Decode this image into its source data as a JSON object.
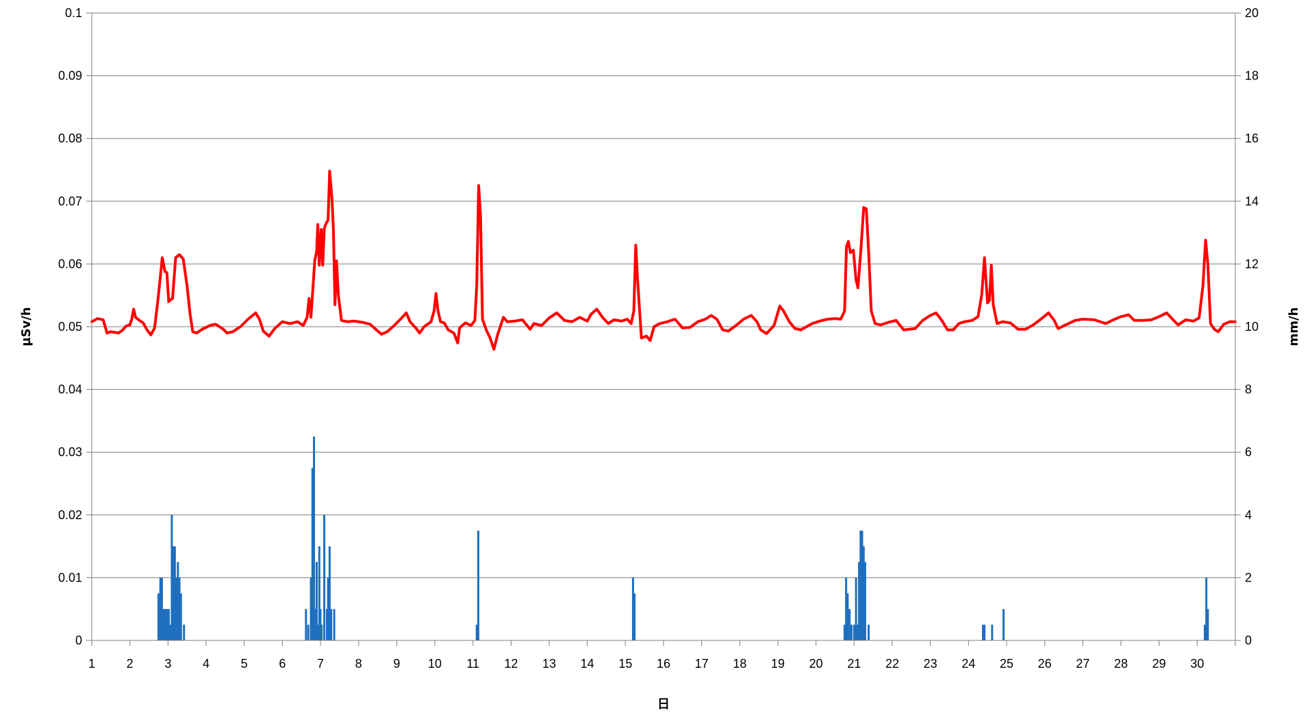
{
  "chart_data": {
    "type": "line",
    "xlabel": "日",
    "ylabel_left": "µSv/h",
    "ylabel_right": "mm/h",
    "xlim": [
      1,
      31
    ],
    "ylim_left": [
      0,
      0.1
    ],
    "ylim_right": [
      0,
      20
    ],
    "x_ticks": [
      "1",
      "2",
      "3",
      "4",
      "5",
      "6",
      "7",
      "8",
      "9",
      "10",
      "11",
      "12",
      "13",
      "14",
      "15",
      "16",
      "17",
      "18",
      "19",
      "20",
      "21",
      "22",
      "23",
      "24",
      "25",
      "26",
      "27",
      "28",
      "29",
      "30"
    ],
    "y_ticks_left": [
      "0",
      "0.01",
      "0.02",
      "0.03",
      "0.04",
      "0.05",
      "0.06",
      "0.07",
      "0.08",
      "0.09",
      "0.1"
    ],
    "y_ticks_right": [
      "0",
      "2",
      "4",
      "6",
      "8",
      "10",
      "12",
      "14",
      "16",
      "18",
      "20"
    ],
    "grid": "horizontal",
    "legend": "none",
    "colors": {
      "dose_line": "#ff0000",
      "rain_bars": "#1f6fbf",
      "grid": "#7f7f7f",
      "axis": "#7f7f7f"
    },
    "series": [
      {
        "axis": "left",
        "kind": "line",
        "points": [
          [
            1.0,
            0.0508
          ],
          [
            1.15,
            0.0513
          ],
          [
            1.3,
            0.0511
          ],
          [
            1.4,
            0.049
          ],
          [
            1.5,
            0.0492
          ],
          [
            1.7,
            0.049
          ],
          [
            1.8,
            0.0494
          ],
          [
            1.9,
            0.0501
          ],
          [
            2.0,
            0.0503
          ],
          [
            2.05,
            0.0512
          ],
          [
            2.1,
            0.0528
          ],
          [
            2.15,
            0.0515
          ],
          [
            2.25,
            0.051
          ],
          [
            2.35,
            0.0506
          ],
          [
            2.45,
            0.0495
          ],
          [
            2.55,
            0.0487
          ],
          [
            2.65,
            0.0498
          ],
          [
            2.75,
            0.055
          ],
          [
            2.85,
            0.061
          ],
          [
            2.92,
            0.0588
          ],
          [
            2.97,
            0.0586
          ],
          [
            3.02,
            0.054
          ],
          [
            3.07,
            0.0543
          ],
          [
            3.12,
            0.0545
          ],
          [
            3.2,
            0.061
          ],
          [
            3.3,
            0.0615
          ],
          [
            3.4,
            0.0608
          ],
          [
            3.5,
            0.0565
          ],
          [
            3.58,
            0.052
          ],
          [
            3.65,
            0.0492
          ],
          [
            3.75,
            0.049
          ],
          [
            3.9,
            0.0496
          ],
          [
            4.1,
            0.0502
          ],
          [
            4.25,
            0.0504
          ],
          [
            4.45,
            0.0496
          ],
          [
            4.55,
            0.049
          ],
          [
            4.7,
            0.0492
          ],
          [
            4.9,
            0.05
          ],
          [
            5.1,
            0.0512
          ],
          [
            5.3,
            0.0522
          ],
          [
            5.4,
            0.0512
          ],
          [
            5.5,
            0.0493
          ],
          [
            5.65,
            0.0485
          ],
          [
            5.8,
            0.0497
          ],
          [
            6.0,
            0.0508
          ],
          [
            6.2,
            0.0505
          ],
          [
            6.4,
            0.0508
          ],
          [
            6.55,
            0.0502
          ],
          [
            6.65,
            0.0515
          ],
          [
            6.7,
            0.0545
          ],
          [
            6.75,
            0.0515
          ],
          [
            6.8,
            0.056
          ],
          [
            6.85,
            0.0605
          ],
          [
            6.9,
            0.062
          ],
          [
            6.93,
            0.0663
          ],
          [
            6.97,
            0.0598
          ],
          [
            7.02,
            0.0655
          ],
          [
            7.06,
            0.0598
          ],
          [
            7.1,
            0.0657
          ],
          [
            7.15,
            0.0665
          ],
          [
            7.2,
            0.067
          ],
          [
            7.24,
            0.0748
          ],
          [
            7.3,
            0.0705
          ],
          [
            7.34,
            0.0655
          ],
          [
            7.38,
            0.0535
          ],
          [
            7.42,
            0.0605
          ],
          [
            7.47,
            0.055
          ],
          [
            7.55,
            0.051
          ],
          [
            7.7,
            0.0508
          ],
          [
            7.9,
            0.0509
          ],
          [
            8.1,
            0.0507
          ],
          [
            8.3,
            0.0504
          ],
          [
            8.45,
            0.0496
          ],
          [
            8.6,
            0.0488
          ],
          [
            8.75,
            0.0492
          ],
          [
            8.9,
            0.05
          ],
          [
            9.1,
            0.0512
          ],
          [
            9.25,
            0.0522
          ],
          [
            9.35,
            0.0508
          ],
          [
            9.5,
            0.0498
          ],
          [
            9.6,
            0.049
          ],
          [
            9.72,
            0.05
          ],
          [
            9.9,
            0.0508
          ],
          [
            9.98,
            0.0525
          ],
          [
            10.03,
            0.0553
          ],
          [
            10.08,
            0.0526
          ],
          [
            10.15,
            0.0508
          ],
          [
            10.25,
            0.0506
          ],
          [
            10.35,
            0.0495
          ],
          [
            10.5,
            0.049
          ],
          [
            10.6,
            0.0474
          ],
          [
            10.65,
            0.0498
          ],
          [
            10.8,
            0.0506
          ],
          [
            10.95,
            0.0502
          ],
          [
            11.05,
            0.051
          ],
          [
            11.1,
            0.0565
          ],
          [
            11.15,
            0.0725
          ],
          [
            11.2,
            0.0675
          ],
          [
            11.25,
            0.0512
          ],
          [
            11.35,
            0.0495
          ],
          [
            11.45,
            0.0482
          ],
          [
            11.55,
            0.0464
          ],
          [
            11.65,
            0.0488
          ],
          [
            11.8,
            0.0515
          ],
          [
            11.9,
            0.0508
          ],
          [
            12.1,
            0.0509
          ],
          [
            12.3,
            0.0511
          ],
          [
            12.5,
            0.0496
          ],
          [
            12.6,
            0.0505
          ],
          [
            12.8,
            0.0502
          ],
          [
            13.0,
            0.0514
          ],
          [
            13.2,
            0.0522
          ],
          [
            13.4,
            0.051
          ],
          [
            13.6,
            0.0508
          ],
          [
            13.8,
            0.0515
          ],
          [
            14.0,
            0.0509
          ],
          [
            14.1,
            0.052
          ],
          [
            14.25,
            0.0528
          ],
          [
            14.4,
            0.0515
          ],
          [
            14.55,
            0.0505
          ],
          [
            14.7,
            0.0511
          ],
          [
            14.9,
            0.0509
          ],
          [
            15.05,
            0.0512
          ],
          [
            15.15,
            0.0505
          ],
          [
            15.22,
            0.0525
          ],
          [
            15.27,
            0.063
          ],
          [
            15.32,
            0.0575
          ],
          [
            15.42,
            0.0482
          ],
          [
            15.55,
            0.0485
          ],
          [
            15.65,
            0.0478
          ],
          [
            15.75,
            0.05
          ],
          [
            15.9,
            0.0505
          ],
          [
            16.1,
            0.0508
          ],
          [
            16.3,
            0.0512
          ],
          [
            16.5,
            0.0498
          ],
          [
            16.7,
            0.0499
          ],
          [
            16.9,
            0.0508
          ],
          [
            17.1,
            0.0512
          ],
          [
            17.25,
            0.0518
          ],
          [
            17.4,
            0.0512
          ],
          [
            17.55,
            0.0495
          ],
          [
            17.7,
            0.0493
          ],
          [
            17.9,
            0.0502
          ],
          [
            18.1,
            0.0512
          ],
          [
            18.3,
            0.0518
          ],
          [
            18.45,
            0.0508
          ],
          [
            18.55,
            0.0495
          ],
          [
            18.7,
            0.0489
          ],
          [
            18.9,
            0.0502
          ],
          [
            19.05,
            0.0533
          ],
          [
            19.15,
            0.0525
          ],
          [
            19.3,
            0.0508
          ],
          [
            19.45,
            0.0497
          ],
          [
            19.6,
            0.0495
          ],
          [
            19.75,
            0.05
          ],
          [
            19.9,
            0.0505
          ],
          [
            20.1,
            0.0509
          ],
          [
            20.3,
            0.0512
          ],
          [
            20.5,
            0.0513
          ],
          [
            20.65,
            0.0512
          ],
          [
            20.75,
            0.0525
          ],
          [
            20.8,
            0.0628
          ],
          [
            20.85,
            0.0636
          ],
          [
            20.9,
            0.0618
          ],
          [
            20.98,
            0.0622
          ],
          [
            21.05,
            0.0575
          ],
          [
            21.1,
            0.0562
          ],
          [
            21.18,
            0.0625
          ],
          [
            21.25,
            0.069
          ],
          [
            21.32,
            0.0688
          ],
          [
            21.38,
            0.062
          ],
          [
            21.45,
            0.0525
          ],
          [
            21.55,
            0.0505
          ],
          [
            21.7,
            0.0503
          ],
          [
            21.9,
            0.0507
          ],
          [
            22.1,
            0.051
          ],
          [
            22.3,
            0.0495
          ],
          [
            22.45,
            0.0496
          ],
          [
            22.6,
            0.0497
          ],
          [
            22.8,
            0.051
          ],
          [
            23.0,
            0.0518
          ],
          [
            23.15,
            0.0522
          ],
          [
            23.3,
            0.051
          ],
          [
            23.45,
            0.0495
          ],
          [
            23.6,
            0.0495
          ],
          [
            23.75,
            0.0505
          ],
          [
            23.9,
            0.0508
          ],
          [
            24.1,
            0.051
          ],
          [
            24.25,
            0.0516
          ],
          [
            24.35,
            0.0552
          ],
          [
            24.42,
            0.061
          ],
          [
            24.5,
            0.0538
          ],
          [
            24.55,
            0.0542
          ],
          [
            24.6,
            0.0598
          ],
          [
            24.65,
            0.0535
          ],
          [
            24.75,
            0.0505
          ],
          [
            24.9,
            0.0508
          ],
          [
            25.1,
            0.0506
          ],
          [
            25.3,
            0.0496
          ],
          [
            25.5,
            0.0496
          ],
          [
            25.7,
            0.0503
          ],
          [
            25.9,
            0.0512
          ],
          [
            26.1,
            0.0522
          ],
          [
            26.25,
            0.051
          ],
          [
            26.35,
            0.0497
          ],
          [
            26.55,
            0.0503
          ],
          [
            26.8,
            0.051
          ],
          [
            27.0,
            0.0512
          ],
          [
            27.3,
            0.0511
          ],
          [
            27.6,
            0.0505
          ],
          [
            27.8,
            0.0511
          ],
          [
            28.0,
            0.0516
          ],
          [
            28.2,
            0.0519
          ],
          [
            28.35,
            0.051
          ],
          [
            28.6,
            0.051
          ],
          [
            28.8,
            0.0511
          ],
          [
            29.0,
            0.0516
          ],
          [
            29.2,
            0.0522
          ],
          [
            29.35,
            0.0512
          ],
          [
            29.5,
            0.0503
          ],
          [
            29.7,
            0.0511
          ],
          [
            29.9,
            0.0509
          ],
          [
            30.05,
            0.0514
          ],
          [
            30.15,
            0.0565
          ],
          [
            30.22,
            0.0638
          ],
          [
            30.28,
            0.06
          ],
          [
            30.35,
            0.0505
          ],
          [
            30.45,
            0.0496
          ],
          [
            30.55,
            0.0492
          ],
          [
            30.7,
            0.0504
          ],
          [
            30.85,
            0.0508
          ],
          [
            31.0,
            0.0508
          ]
        ]
      },
      {
        "axis": "right",
        "kind": "bar",
        "points": [
          [
            2.75,
            1.5
          ],
          [
            2.8,
            2.0
          ],
          [
            2.84,
            2.0
          ],
          [
            2.88,
            1.0
          ],
          [
            2.92,
            1.0
          ],
          [
            2.97,
            1.0
          ],
          [
            3.02,
            1.0
          ],
          [
            3.06,
            0.5
          ],
          [
            3.1,
            4.0
          ],
          [
            3.14,
            3.0
          ],
          [
            3.18,
            3.0
          ],
          [
            3.22,
            2.0
          ],
          [
            3.26,
            2.5
          ],
          [
            3.3,
            2.0
          ],
          [
            3.34,
            1.5
          ],
          [
            3.42,
            0.5
          ],
          [
            6.62,
            1.0
          ],
          [
            6.68,
            0.5
          ],
          [
            6.75,
            2.0
          ],
          [
            6.79,
            5.5
          ],
          [
            6.83,
            6.5
          ],
          [
            6.87,
            1.0
          ],
          [
            6.9,
            2.5
          ],
          [
            6.93,
            0.5
          ],
          [
            6.97,
            3.0
          ],
          [
            7.0,
            1.0
          ],
          [
            7.03,
            0.5
          ],
          [
            7.1,
            4.0
          ],
          [
            7.17,
            1.0
          ],
          [
            7.2,
            2.0
          ],
          [
            7.24,
            3.0
          ],
          [
            7.28,
            1.0
          ],
          [
            7.36,
            1.0
          ],
          [
            11.1,
            0.5
          ],
          [
            11.14,
            3.5
          ],
          [
            15.2,
            2.0
          ],
          [
            15.24,
            1.5
          ],
          [
            20.75,
            0.5
          ],
          [
            20.79,
            2.0
          ],
          [
            20.83,
            1.5
          ],
          [
            20.88,
            1.0
          ],
          [
            20.93,
            0.5
          ],
          [
            21.0,
            0.5
          ],
          [
            21.05,
            2.0
          ],
          [
            21.09,
            0.5
          ],
          [
            21.13,
            2.5
          ],
          [
            21.17,
            3.5
          ],
          [
            21.21,
            3.5
          ],
          [
            21.25,
            3.0
          ],
          [
            21.29,
            2.5
          ],
          [
            21.38,
            0.5
          ],
          [
            24.38,
            0.5
          ],
          [
            24.42,
            0.5
          ],
          [
            24.62,
            0.5
          ],
          [
            24.92,
            1.0
          ],
          [
            30.2,
            0.5
          ],
          [
            30.24,
            2.0
          ],
          [
            30.28,
            1.0
          ]
        ]
      }
    ]
  }
}
